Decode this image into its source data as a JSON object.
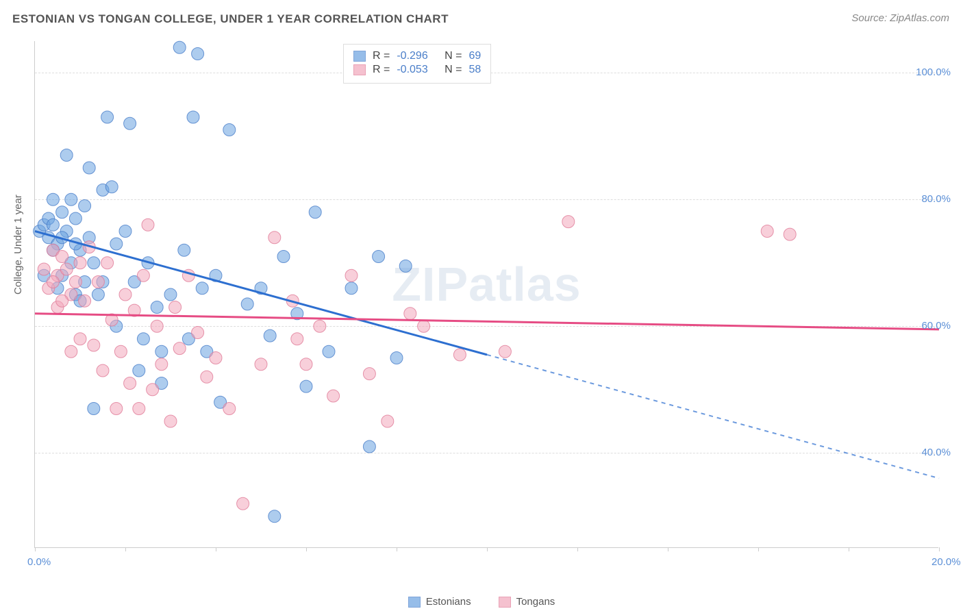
{
  "title": "ESTONIAN VS TONGAN COLLEGE, UNDER 1 YEAR CORRELATION CHART",
  "source_label": "Source: ",
  "source_site": "ZipAtlas.com",
  "y_axis_label": "College, Under 1 year",
  "watermark": "ZIPatlas",
  "chart": {
    "type": "scatter",
    "xlim": [
      0,
      20
    ],
    "ylim": [
      25,
      105
    ],
    "x_ticks": [
      0,
      2,
      4,
      6,
      8,
      10,
      12,
      14,
      16,
      18,
      20
    ],
    "x_tick_labels": {
      "0": "0.0%",
      "20": "20.0%"
    },
    "y_gridlines": [
      40,
      60,
      80,
      100
    ],
    "y_tick_labels": {
      "40": "40.0%",
      "60": "60.0%",
      "80": "80.0%",
      "100": "100.0%"
    },
    "background_color": "#ffffff",
    "grid_color": "#dddddd",
    "axis_color": "#cccccc",
    "label_color": "#5b8fd6",
    "marker_radius": 9,
    "marker_opacity": 0.55,
    "line_width": 3,
    "series": [
      {
        "name": "Estonians",
        "color": "#6aa2e0",
        "border": "#4a7ec9",
        "line_color": "#2d6fd0",
        "R": "-0.296",
        "N": "69",
        "trend": {
          "x1": 0,
          "y1": 75,
          "x2": 20,
          "y2": 36,
          "solid_until_x": 10
        },
        "points": [
          [
            0.1,
            75
          ],
          [
            0.2,
            76
          ],
          [
            0.3,
            74
          ],
          [
            0.3,
            77
          ],
          [
            0.4,
            76
          ],
          [
            0.4,
            80
          ],
          [
            0.5,
            73
          ],
          [
            0.5,
            66
          ],
          [
            0.6,
            78
          ],
          [
            0.6,
            68
          ],
          [
            0.7,
            75
          ],
          [
            0.7,
            87
          ],
          [
            0.8,
            80
          ],
          [
            0.8,
            70
          ],
          [
            0.9,
            77
          ],
          [
            0.9,
            65
          ],
          [
            1.0,
            72
          ],
          [
            1.0,
            64
          ],
          [
            1.1,
            79
          ],
          [
            1.2,
            85
          ],
          [
            1.2,
            74
          ],
          [
            1.3,
            70
          ],
          [
            1.3,
            47
          ],
          [
            1.4,
            65
          ],
          [
            1.5,
            81.5
          ],
          [
            1.5,
            67
          ],
          [
            1.6,
            93
          ],
          [
            1.7,
            82
          ],
          [
            1.8,
            73
          ],
          [
            1.8,
            60
          ],
          [
            2.0,
            75
          ],
          [
            2.1,
            92
          ],
          [
            2.2,
            67
          ],
          [
            2.3,
            53
          ],
          [
            2.4,
            58
          ],
          [
            2.5,
            70
          ],
          [
            2.7,
            63
          ],
          [
            2.8,
            51
          ],
          [
            2.8,
            56
          ],
          [
            3.0,
            65
          ],
          [
            3.2,
            104
          ],
          [
            3.3,
            72
          ],
          [
            3.4,
            58
          ],
          [
            3.5,
            93
          ],
          [
            3.6,
            103
          ],
          [
            3.7,
            66
          ],
          [
            3.8,
            56
          ],
          [
            4.0,
            68
          ],
          [
            4.1,
            48
          ],
          [
            4.3,
            91
          ],
          [
            4.7,
            63.5
          ],
          [
            5.0,
            66
          ],
          [
            5.2,
            58.5
          ],
          [
            5.3,
            30
          ],
          [
            5.5,
            71
          ],
          [
            5.8,
            62
          ],
          [
            6.0,
            50.5
          ],
          [
            6.2,
            78
          ],
          [
            6.5,
            56
          ],
          [
            7.0,
            66
          ],
          [
            7.4,
            41
          ],
          [
            7.6,
            71
          ],
          [
            8.0,
            55
          ],
          [
            8.2,
            69.5
          ],
          [
            0.2,
            68
          ],
          [
            0.4,
            72
          ],
          [
            0.6,
            74
          ],
          [
            0.9,
            73
          ],
          [
            1.1,
            67
          ]
        ]
      },
      {
        "name": "Tongans",
        "color": "#f2a8bb",
        "border": "#e07a97",
        "line_color": "#e64c84",
        "R": "-0.053",
        "N": "58",
        "trend": {
          "x1": 0,
          "y1": 62,
          "x2": 20,
          "y2": 59.5,
          "solid_until_x": 20
        },
        "points": [
          [
            0.2,
            69
          ],
          [
            0.3,
            66
          ],
          [
            0.4,
            72
          ],
          [
            0.5,
            68
          ],
          [
            0.5,
            63
          ],
          [
            0.6,
            71
          ],
          [
            0.7,
            69
          ],
          [
            0.8,
            65
          ],
          [
            0.8,
            56
          ],
          [
            0.9,
            67
          ],
          [
            1.0,
            70
          ],
          [
            1.0,
            58
          ],
          [
            1.1,
            64
          ],
          [
            1.2,
            72.5
          ],
          [
            1.3,
            57
          ],
          [
            1.4,
            67
          ],
          [
            1.5,
            53
          ],
          [
            1.6,
            70
          ],
          [
            1.7,
            61
          ],
          [
            1.8,
            47
          ],
          [
            1.9,
            56
          ],
          [
            2.0,
            65
          ],
          [
            2.1,
            51
          ],
          [
            2.2,
            62.5
          ],
          [
            2.3,
            47
          ],
          [
            2.4,
            68
          ],
          [
            2.5,
            76
          ],
          [
            2.6,
            50
          ],
          [
            2.7,
            60
          ],
          [
            2.8,
            54
          ],
          [
            3.0,
            45
          ],
          [
            3.1,
            63
          ],
          [
            3.2,
            56.5
          ],
          [
            3.4,
            68
          ],
          [
            3.6,
            59
          ],
          [
            3.8,
            52
          ],
          [
            4.0,
            55
          ],
          [
            4.3,
            47
          ],
          [
            4.6,
            32
          ],
          [
            5.0,
            54
          ],
          [
            5.3,
            74
          ],
          [
            5.7,
            64
          ],
          [
            5.8,
            58
          ],
          [
            6.0,
            54
          ],
          [
            6.3,
            60
          ],
          [
            6.6,
            49
          ],
          [
            7.0,
            68
          ],
          [
            7.4,
            52.5
          ],
          [
            7.8,
            45
          ],
          [
            8.3,
            62
          ],
          [
            8.6,
            60
          ],
          [
            9.4,
            55.5
          ],
          [
            10.4,
            56
          ],
          [
            11.8,
            76.5
          ],
          [
            16.2,
            75
          ],
          [
            16.7,
            74.5
          ],
          [
            0.4,
            67
          ],
          [
            0.6,
            64
          ]
        ]
      }
    ],
    "legend": {
      "r_label": "R =",
      "n_label": "N ="
    }
  }
}
